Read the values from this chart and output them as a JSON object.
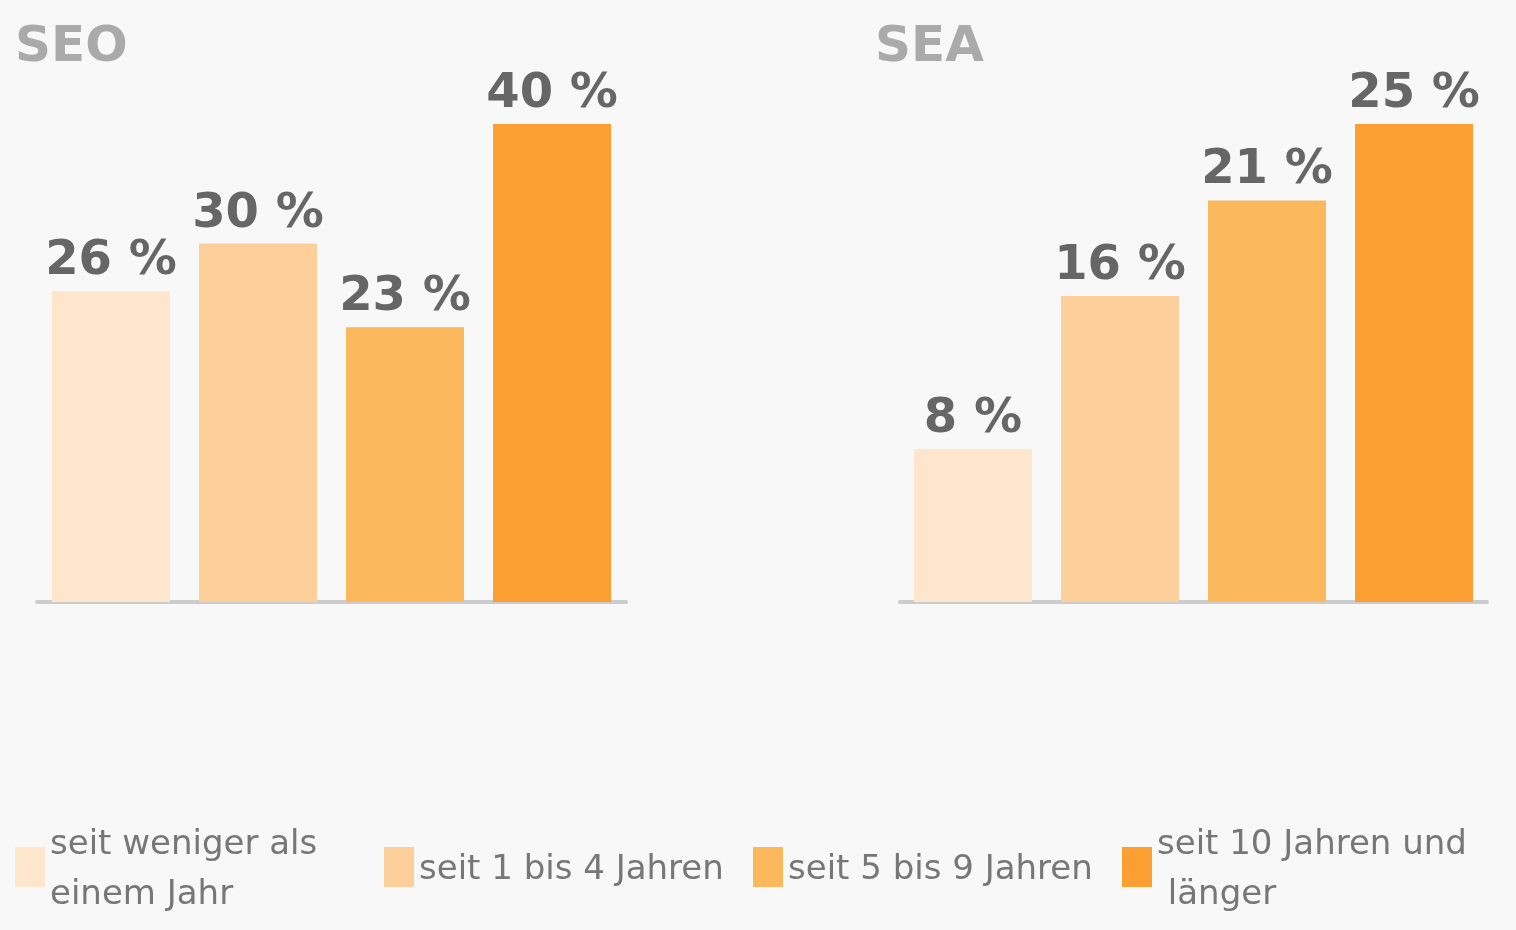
{
  "chart_data": [
    {
      "type": "bar",
      "title": "SEO",
      "categories": [
        null
      ],
      "series": [
        {
          "name": "seit weniger als einem Jahr",
          "color": "#fee6cd",
          "values": [
            26
          ],
          "value_labels": [
            "26 %"
          ]
        },
        {
          "name": "seit 1 bis 4 Jahren",
          "color": "#fdd09b",
          "values": [
            30
          ],
          "value_labels": [
            "30 %"
          ]
        },
        {
          "name": "seit 5 bis 9 Jahren",
          "color": "#fcb85c",
          "values": [
            23
          ],
          "value_labels": [
            "23 %"
          ]
        },
        {
          "name": "seit 10 Jahren und länger",
          "color": "#fb9f32",
          "values": [
            40
          ],
          "value_labels": [
            "40 %"
          ]
        }
      ],
      "tick_labels": false,
      "legend": "bottom"
    },
    {
      "type": "bar",
      "title": "SEA",
      "categories": [
        null
      ],
      "series": [
        {
          "color": "#fee6cd",
          "values": [
            8
          ],
          "value_labels": [
            "8 %"
          ]
        },
        {
          "color": "#fdd09b",
          "values": [
            16
          ],
          "value_labels": [
            "16 %"
          ]
        },
        {
          "color": "#fcb85c",
          "values": [
            21
          ],
          "value_labels": [
            "21 %"
          ]
        },
        {
          "color": "#fb9f32",
          "values": [
            25
          ],
          "value_labels": [
            "25 %"
          ]
        }
      ],
      "tick_labels": false
    }
  ]
}
